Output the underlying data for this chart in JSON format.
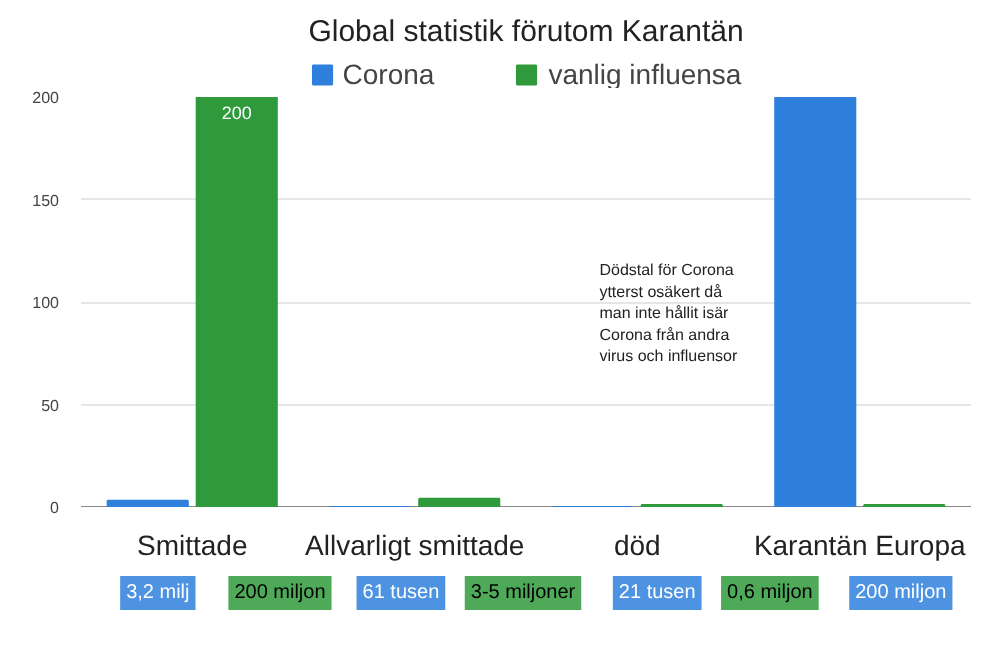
{
  "chart_data": {
    "type": "bar",
    "title": "Global statistik förutom Karantän",
    "categories": [
      "Smittade",
      "Allvarligt smittade",
      "död",
      "Karantän Europa"
    ],
    "series": [
      {
        "name": "Corona",
        "color": "#2f80dc",
        "values": [
          3,
          0,
          0,
          200
        ]
      },
      {
        "name": "vanlig influensa",
        "color": "#2f9a3c",
        "values": [
          200,
          4,
          1,
          1
        ],
        "value_labels": [
          "200",
          null,
          null,
          null
        ]
      }
    ],
    "ylim": [
      0,
      200
    ],
    "yticks": [
      0,
      50,
      100,
      150,
      200
    ],
    "grid": "y",
    "legend": "top",
    "annotations": [
      "3,2 milj",
      "200 miljon",
      "61 tusen",
      "3-5 miljoner",
      "21 tusen",
      "0,6 miljon",
      "200 miljon",
      "Dödstal för Corona\nytterst osäkert då\nman inte hållit isär\nCorona från andra\nvirus och influensor"
    ]
  }
}
